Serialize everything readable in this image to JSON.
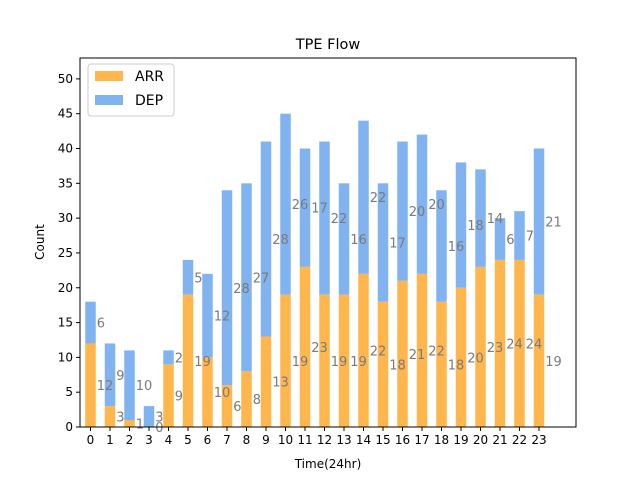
{
  "chart_data": {
    "type": "bar",
    "stacked": true,
    "title": "TPE Flow",
    "xlabel": "Time(24hr)",
    "ylabel": "Count",
    "ylim": [
      0,
      53
    ],
    "yticks": [
      0,
      5,
      10,
      15,
      20,
      25,
      30,
      35,
      40,
      45,
      50
    ],
    "categories": [
      "0",
      "1",
      "2",
      "3",
      "4",
      "5",
      "6",
      "7",
      "8",
      "9",
      "10",
      "11",
      "12",
      "13",
      "14",
      "15",
      "16",
      "17",
      "18",
      "19",
      "20",
      "21",
      "22",
      "23"
    ],
    "series": [
      {
        "name": "ARR",
        "color": "#ffb74d",
        "values": [
          12,
          3,
          1,
          0,
          9,
          19,
          10,
          6,
          8,
          13,
          19,
          23,
          19,
          19,
          22,
          18,
          21,
          22,
          18,
          20,
          23,
          24,
          24,
          19
        ]
      },
      {
        "name": "DEP",
        "color": "#80b3f0",
        "values": [
          6,
          9,
          10,
          3,
          2,
          5,
          12,
          28,
          27,
          28,
          26,
          17,
          22,
          16,
          22,
          17,
          20,
          20,
          16,
          18,
          14,
          6,
          7,
          21
        ]
      }
    ],
    "legend_position": "top-left",
    "grid": false,
    "data_label_color": "#7a7a7a"
  }
}
